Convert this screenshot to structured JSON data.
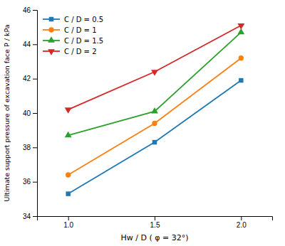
{
  "chart_data": {
    "type": "line",
    "x": [
      1.0,
      1.5,
      2.0
    ],
    "series": [
      {
        "name": "C / D = 0.5",
        "values": [
          35.3,
          38.3,
          41.9
        ],
        "marker": "square",
        "line_style": "solid"
      },
      {
        "name": "C / D = 1",
        "values": [
          36.4,
          39.4,
          43.2
        ],
        "marker": "circle",
        "line_style": "solid"
      },
      {
        "name": "C / D = 1.5",
        "values": [
          38.7,
          40.1,
          44.7
        ],
        "marker": "triangle-up",
        "line_style": "solid"
      },
      {
        "name": "C / D = 2",
        "values": [
          40.2,
          42.4,
          45.1
        ],
        "marker": "triangle-down",
        "line_style": "solid"
      }
    ],
    "x_label": "Hw / D ( φ = 32°)",
    "y_label": "Ultimate support pressure of excavation face P / kPa",
    "xlim": [
      0.82,
      2.18
    ],
    "ylim": [
      34,
      46
    ],
    "xticks": [
      {
        "value": 1.0,
        "label": "1.0"
      },
      1.5,
      {
        "value": 2.0,
        "label": "2.0"
      }
    ],
    "yticks": [
      34,
      36,
      38,
      40,
      42,
      44,
      46
    ],
    "grid": false,
    "legend": "upper left"
  }
}
